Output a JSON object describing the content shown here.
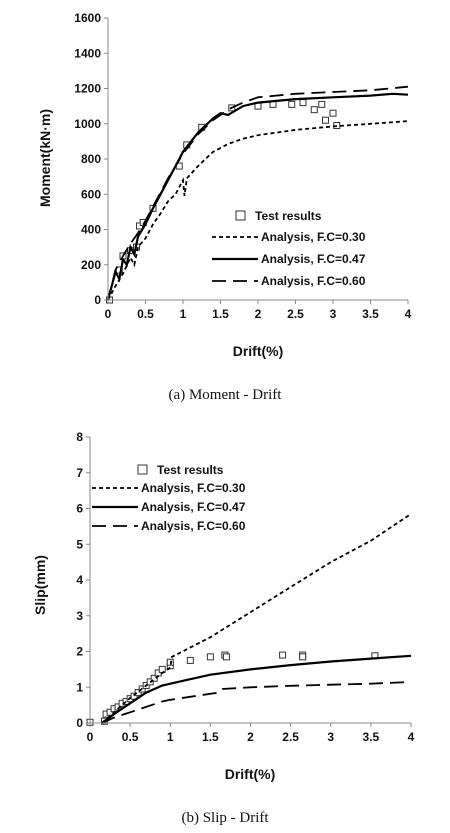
{
  "chart_data": [
    {
      "type": "scatter",
      "caption": "(a) Moment - Drift",
      "xlabel": "Drift(%)",
      "ylabel": "Moment(kN·m)",
      "xlim": [
        0,
        4
      ],
      "ylim": [
        0,
        1600
      ],
      "xticks": [
        0,
        0.5,
        1,
        1.5,
        2,
        2.5,
        3,
        3.5,
        4
      ],
      "xtick_labels": [
        "0",
        "0.5",
        "1",
        "1.5",
        "2",
        "2.5",
        "3",
        "3.5",
        "4"
      ],
      "yticks": [
        0,
        200,
        400,
        600,
        800,
        1000,
        1200,
        1400,
        1600
      ],
      "ytick_labels": [
        "0",
        "200",
        "400",
        "600",
        "800",
        "1000",
        "1200",
        "1400",
        "1600"
      ],
      "legend_position": "center-right",
      "series": [
        {
          "name": "Test results",
          "style": "square-marker",
          "points": [
            [
              0.02,
              0
            ],
            [
              0.15,
              170
            ],
            [
              0.2,
              250
            ],
            [
              0.3,
              280
            ],
            [
              0.38,
              300
            ],
            [
              0.42,
              420
            ],
            [
              0.47,
              440
            ],
            [
              0.6,
              520
            ],
            [
              0.95,
              760
            ],
            [
              1.05,
              880
            ],
            [
              1.25,
              980
            ],
            [
              1.65,
              1090
            ],
            [
              2.0,
              1100
            ],
            [
              2.2,
              1110
            ],
            [
              2.45,
              1110
            ],
            [
              2.6,
              1120
            ],
            [
              2.75,
              1080
            ],
            [
              2.85,
              1110
            ],
            [
              2.9,
              1020
            ],
            [
              3.0,
              1060
            ],
            [
              3.05,
              990
            ]
          ]
        },
        {
          "name": "Analysis, F.C=0.30",
          "style": "short-dash",
          "points": [
            [
              0,
              0
            ],
            [
              0.1,
              80
            ],
            [
              0.2,
              150
            ],
            [
              0.3,
              240
            ],
            [
              0.35,
              200
            ],
            [
              0.4,
              300
            ],
            [
              0.5,
              350
            ],
            [
              0.6,
              430
            ],
            [
              0.7,
              490
            ],
            [
              0.8,
              560
            ],
            [
              0.9,
              600
            ],
            [
              1.0,
              680
            ],
            [
              1.02,
              590
            ],
            [
              1.05,
              690
            ],
            [
              1.2,
              760
            ],
            [
              1.4,
              840
            ],
            [
              1.6,
              885
            ],
            [
              1.8,
              915
            ],
            [
              2.0,
              935
            ],
            [
              2.5,
              965
            ],
            [
              3.0,
              985
            ],
            [
              3.5,
              1000
            ],
            [
              4.0,
              1015
            ]
          ]
        },
        {
          "name": "Analysis, F.C=0.47",
          "style": "solid",
          "points": [
            [
              0,
              0
            ],
            [
              0.1,
              160
            ],
            [
              0.15,
              120
            ],
            [
              0.2,
              230
            ],
            [
              0.25,
              200
            ],
            [
              0.3,
              300
            ],
            [
              0.35,
              260
            ],
            [
              0.4,
              360
            ],
            [
              0.5,
              430
            ],
            [
              0.6,
              520
            ],
            [
              0.7,
              600
            ],
            [
              0.8,
              680
            ],
            [
              0.9,
              760
            ],
            [
              1.0,
              840
            ],
            [
              1.2,
              950
            ],
            [
              1.4,
              1030
            ],
            [
              1.5,
              1060
            ],
            [
              1.6,
              1050
            ],
            [
              1.8,
              1100
            ],
            [
              2.0,
              1120
            ],
            [
              2.5,
              1140
            ],
            [
              3.0,
              1150
            ],
            [
              3.5,
              1160
            ],
            [
              3.8,
              1170
            ],
            [
              4.0,
              1165
            ]
          ]
        },
        {
          "name": "Analysis, F.C=0.60",
          "style": "long-dash",
          "points": [
            [
              0,
              0
            ],
            [
              0.1,
              170
            ],
            [
              0.2,
              250
            ],
            [
              0.3,
              320
            ],
            [
              0.4,
              380
            ],
            [
              0.5,
              450
            ],
            [
              0.6,
              530
            ],
            [
              0.7,
              610
            ],
            [
              0.8,
              690
            ],
            [
              0.9,
              760
            ],
            [
              1.0,
              830
            ],
            [
              1.2,
              940
            ],
            [
              1.4,
              1020
            ],
            [
              1.6,
              1080
            ],
            [
              1.8,
              1120
            ],
            [
              2.0,
              1150
            ],
            [
              2.5,
              1170
            ],
            [
              3.0,
              1180
            ],
            [
              3.5,
              1190
            ],
            [
              4.0,
              1210
            ]
          ]
        }
      ]
    },
    {
      "type": "scatter",
      "caption": "(b) Slip - Drift",
      "xlabel": "Drift(%)",
      "ylabel": "Slip(mm)",
      "xlim": [
        0,
        4
      ],
      "ylim": [
        0,
        8
      ],
      "xticks": [
        0,
        0.5,
        1,
        1.5,
        2,
        2.5,
        3,
        3.5,
        4
      ],
      "xtick_labels": [
        "0",
        "0.5",
        "1",
        "1.5",
        "2",
        "2.5",
        "3",
        "3.5",
        "4"
      ],
      "yticks": [
        0,
        1,
        2,
        3,
        4,
        5,
        6,
        7,
        8
      ],
      "ytick_labels": [
        "0",
        "1",
        "2",
        "3",
        "4",
        "5",
        "6",
        "7",
        "8"
      ],
      "legend_position": "top-left",
      "series": [
        {
          "name": "Test results",
          "style": "square-marker",
          "points": [
            [
              0,
              0.02
            ],
            [
              0.18,
              0.05
            ],
            [
              0.2,
              0.25
            ],
            [
              0.25,
              0.3
            ],
            [
              0.3,
              0.4
            ],
            [
              0.35,
              0.45
            ],
            [
              0.4,
              0.55
            ],
            [
              0.45,
              0.6
            ],
            [
              0.5,
              0.68
            ],
            [
              0.55,
              0.75
            ],
            [
              0.6,
              0.85
            ],
            [
              0.65,
              0.95
            ],
            [
              0.7,
              1.05
            ],
            [
              0.75,
              1.15
            ],
            [
              0.8,
              1.25
            ],
            [
              0.85,
              1.4
            ],
            [
              0.9,
              1.5
            ],
            [
              1.0,
              1.6
            ],
            [
              1.0,
              1.7
            ],
            [
              1.25,
              1.75
            ],
            [
              1.5,
              1.85
            ],
            [
              1.68,
              1.9
            ],
            [
              1.7,
              1.85
            ],
            [
              2.4,
              1.9
            ],
            [
              2.65,
              1.9
            ],
            [
              2.65,
              1.85
            ],
            [
              3.55,
              1.88
            ]
          ]
        },
        {
          "name": "Analysis, F.C=0.30",
          "style": "short-dash",
          "points": [
            [
              0.15,
              0
            ],
            [
              0.3,
              0.3
            ],
            [
              0.5,
              0.7
            ],
            [
              0.7,
              1.05
            ],
            [
              0.9,
              1.4
            ],
            [
              1.0,
              1.55
            ],
            [
              1.02,
              1.85
            ],
            [
              1.5,
              2.4
            ],
            [
              2.0,
              3.1
            ],
            [
              2.5,
              3.8
            ],
            [
              3.0,
              4.5
            ],
            [
              3.5,
              5.1
            ],
            [
              4.0,
              5.85
            ]
          ]
        },
        {
          "name": "Analysis, F.C=0.47",
          "style": "solid",
          "points": [
            [
              0.15,
              0
            ],
            [
              0.3,
              0.25
            ],
            [
              0.5,
              0.55
            ],
            [
              0.7,
              0.85
            ],
            [
              0.9,
              1.05
            ],
            [
              1.0,
              1.1
            ],
            [
              1.2,
              1.2
            ],
            [
              1.5,
              1.35
            ],
            [
              2.0,
              1.5
            ],
            [
              2.5,
              1.62
            ],
            [
              3.0,
              1.72
            ],
            [
              3.5,
              1.8
            ],
            [
              4.0,
              1.88
            ]
          ]
        },
        {
          "name": "Analysis, F.C=0.60",
          "style": "long-dash",
          "points": [
            [
              0.15,
              0
            ],
            [
              0.3,
              0.15
            ],
            [
              0.5,
              0.3
            ],
            [
              0.7,
              0.45
            ],
            [
              0.9,
              0.6
            ],
            [
              1.0,
              0.65
            ],
            [
              1.3,
              0.75
            ],
            [
              1.6,
              0.85
            ],
            [
              1.65,
              0.95
            ],
            [
              2.0,
              1.0
            ],
            [
              2.5,
              1.04
            ],
            [
              3.0,
              1.07
            ],
            [
              3.5,
              1.1
            ],
            [
              4.0,
              1.15
            ]
          ]
        }
      ]
    }
  ]
}
